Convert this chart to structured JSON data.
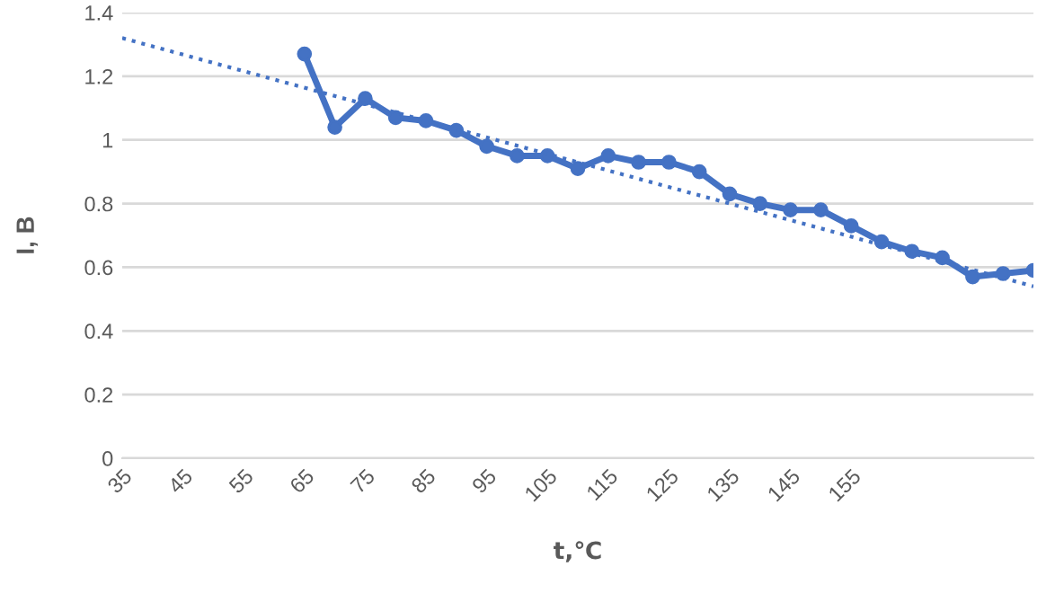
{
  "chart_data": {
    "type": "line",
    "xlabel": "t,℃",
    "ylabel": "I, B",
    "x": [
      65,
      70,
      75,
      80,
      85,
      90,
      95,
      100,
      105,
      110,
      115,
      120,
      125,
      130,
      135,
      140,
      145,
      150,
      155,
      160,
      165,
      170,
      175,
      180,
      185
    ],
    "series": [
      {
        "color": "#4472c4",
        "marker": "circle",
        "line_style": "solid",
        "values": [
          1.27,
          1.04,
          1.13,
          1.07,
          1.06,
          1.03,
          0.98,
          0.95,
          0.95,
          0.91,
          0.95,
          0.93,
          0.93,
          0.9,
          0.83,
          0.8,
          0.78,
          0.78,
          0.73,
          0.68,
          0.65,
          0.63,
          0.57,
          0.58,
          0.59
        ]
      },
      {
        "color": "#4472c4",
        "marker": "none",
        "line_style": "dotted",
        "x": [
          35,
          185
        ],
        "values": [
          1.32,
          0.54
        ]
      }
    ],
    "xlim": [
      35,
      185
    ],
    "xticks": [
      35,
      45,
      55,
      65,
      75,
      85,
      95,
      105,
      115,
      125,
      135,
      145,
      155
    ],
    "ylim": [
      0,
      1.4
    ],
    "yticks": [
      0,
      0.2,
      0.4,
      0.6,
      0.8,
      1,
      1.2,
      1.4
    ],
    "grid": "y",
    "legend": false
  }
}
